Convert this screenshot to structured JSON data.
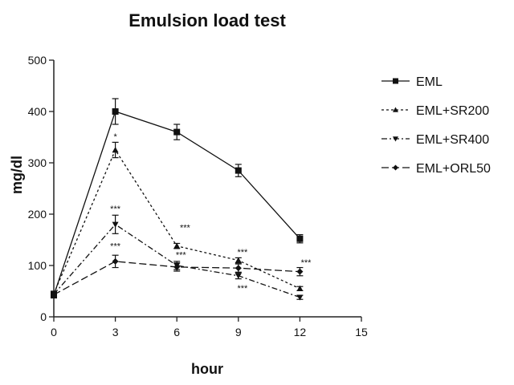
{
  "chart_data": {
    "type": "line",
    "title": "Emulsion load test",
    "xlabel": "hour",
    "ylabel": "mg/dl",
    "xlim": [
      0,
      15
    ],
    "ylim": [
      0,
      500
    ],
    "xticks": [
      "0",
      "3",
      "6",
      "9",
      "12",
      "15"
    ],
    "yticks": [
      "0",
      "100",
      "200",
      "300",
      "400",
      "500"
    ],
    "grid": false,
    "legend_position": "right",
    "x": [
      0,
      3,
      6,
      9,
      12
    ],
    "series": [
      {
        "name": "EML",
        "values": [
          42,
          400,
          360,
          285,
          152
        ],
        "errors": [
          5,
          25,
          15,
          12,
          8
        ],
        "marker": "square",
        "dash": "solid"
      },
      {
        "name": "EML+SR200",
        "values": [
          45,
          325,
          138,
          110,
          55
        ],
        "errors": [
          5,
          15,
          5,
          5,
          4
        ],
        "marker": "triangle-up",
        "dash": "short"
      },
      {
        "name": "EML+SR400",
        "values": [
          44,
          180,
          100,
          80,
          38
        ],
        "errors": [
          5,
          18,
          8,
          6,
          4
        ],
        "marker": "triangle-down",
        "dash": "dashdot"
      },
      {
        "name": "EML+ORL50",
        "values": [
          43,
          108,
          97,
          95,
          88
        ],
        "errors": [
          5,
          12,
          8,
          8,
          8
        ],
        "marker": "diamond",
        "dash": "long"
      }
    ],
    "annotations": [
      {
        "text": "*",
        "x": 3,
        "y": 345
      },
      {
        "text": "***",
        "x": 3,
        "y": 205
      },
      {
        "text": "***",
        "x": 3,
        "y": 132
      },
      {
        "text": "***",
        "x": 6.4,
        "y": 168
      },
      {
        "text": "***",
        "x": 6.2,
        "y": 115
      },
      {
        "text": "***",
        "x": 9.2,
        "y": 120
      },
      {
        "text": "***",
        "x": 9.2,
        "y": 50
      },
      {
        "text": "***",
        "x": 12.3,
        "y": 100
      }
    ]
  }
}
